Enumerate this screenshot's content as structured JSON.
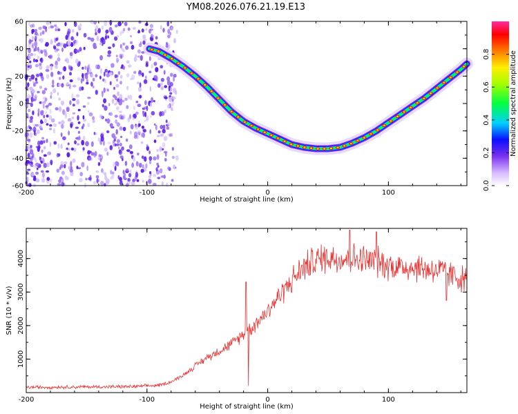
{
  "title": "YM08.2026.076.21.19.E13",
  "chart_data": [
    {
      "type": "heatmap",
      "name": "spectrogram",
      "xlabel": "Height of straight line (km)",
      "ylabel": "Frequency (Hz)",
      "xlim": [
        -200,
        165
      ],
      "ylim": [
        -60,
        60
      ],
      "xticks": [
        -200,
        -100,
        0,
        100
      ],
      "yticks": [
        -60,
        -40,
        -20,
        0,
        20,
        40,
        60
      ],
      "colorbar": {
        "label": "Normalized spectral amplitude",
        "range": [
          0,
          1
        ],
        "ticks": [
          "0.0",
          "0.2",
          "0.4",
          "0.6",
          "0.8"
        ]
      },
      "curve": {
        "x": [
          -98,
          -90,
          -80,
          -70,
          -60,
          -50,
          -40,
          -30,
          -20,
          -10,
          0,
          10,
          20,
          30,
          40,
          50,
          60,
          70,
          80,
          90,
          100,
          110,
          120,
          130,
          140,
          150,
          160,
          165
        ],
        "y": [
          40,
          38,
          33,
          27,
          20,
          12,
          3,
          -6,
          -13,
          -18,
          -22,
          -26,
          -30,
          -32,
          -33,
          -33,
          -32,
          -29,
          -25,
          -20,
          -14,
          -8,
          -2,
          4,
          11,
          18,
          25,
          29
        ]
      },
      "noise_region_x": [
        -200,
        -75
      ]
    },
    {
      "type": "line",
      "name": "snr",
      "xlabel": "Height of straight line (km)",
      "ylabel": "SNR (10 * v/v)",
      "xlim": [
        -200,
        165
      ],
      "ylim": [
        0,
        4900
      ],
      "xticks": [
        -200,
        -100,
        0,
        100
      ],
      "yticks": [
        1000,
        2000,
        3000,
        4000
      ],
      "color": "#e8302f",
      "envelope": {
        "x": [
          -200,
          -150,
          -110,
          -90,
          -80,
          -70,
          -60,
          -50,
          -40,
          -30,
          -20,
          -10,
          0,
          10,
          20,
          30,
          40,
          50,
          60,
          70,
          80,
          90,
          100,
          110,
          120,
          130,
          140,
          150,
          160,
          165
        ],
        "y": [
          160,
          170,
          180,
          220,
          320,
          520,
          800,
          1050,
          1250,
          1450,
          1750,
          2050,
          2450,
          2900,
          3350,
          3750,
          3950,
          4050,
          4000,
          4000,
          3950,
          3900,
          3800,
          3750,
          3750,
          3700,
          3650,
          3550,
          3400,
          3400
        ]
      },
      "spikes": [
        {
          "x": -18,
          "y": 3300
        },
        {
          "x": -16,
          "y": 200
        },
        {
          "x": 68,
          "y": 4850
        },
        {
          "x": 90,
          "y": 4800
        },
        {
          "x": 148,
          "y": 2750
        }
      ]
    }
  ]
}
